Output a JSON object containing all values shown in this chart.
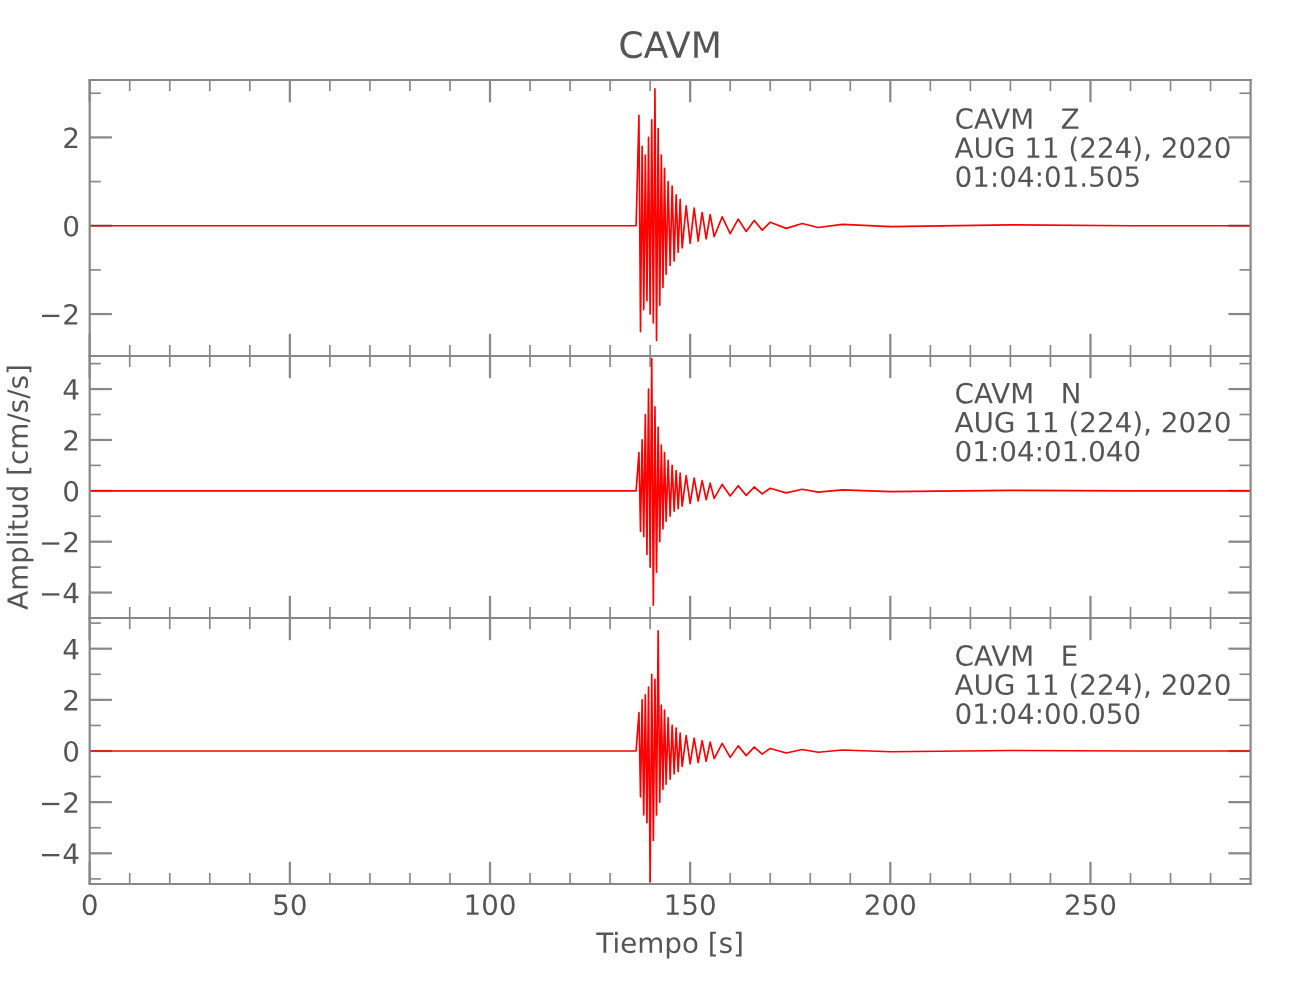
{
  "chart_data": [
    {
      "type": "line",
      "title": "CAVM",
      "tick_labels": "y",
      "annotations": [
        "CAVM   Z\nAUG 11 (224), 2020\n01:04:01.505"
      ],
      "xlim": [
        0,
        290
      ],
      "ylim": [
        -2.95,
        3.3
      ],
      "xticks": [
        0,
        {
          "value": 10,
          "label": null
        },
        {
          "value": 20,
          "label": null
        },
        {
          "value": 30,
          "label": null
        },
        {
          "value": 40,
          "label": null
        },
        50,
        {
          "value": 60,
          "label": null
        },
        {
          "value": 70,
          "label": null
        },
        {
          "value": 80,
          "label": null
        },
        {
          "value": 90,
          "label": null
        },
        100,
        {
          "value": 110,
          "label": null
        },
        {
          "value": 120,
          "label": null
        },
        {
          "value": 130,
          "label": null
        },
        {
          "value": 140,
          "label": null
        },
        150,
        {
          "value": 160,
          "label": null
        },
        {
          "value": 170,
          "label": null
        },
        {
          "value": 180,
          "label": null
        },
        {
          "value": 190,
          "label": null
        },
        200,
        {
          "value": 210,
          "label": null
        },
        {
          "value": 220,
          "label": null
        },
        {
          "value": 230,
          "label": null
        },
        {
          "value": 240,
          "label": null
        },
        250,
        {
          "value": 260,
          "label": null
        },
        {
          "value": 270,
          "label": null
        },
        {
          "value": 280,
          "label": null
        }
      ],
      "yticks": [
        {
          "value": -2,
          "label": "−2"
        },
        {
          "value": -1,
          "label": null
        },
        0,
        {
          "value": 1,
          "label": null
        },
        2,
        {
          "value": 3,
          "label": null
        }
      ],
      "x": [
        0,
        30,
        60,
        90,
        120,
        136.5,
        137.2,
        137.6,
        138.0,
        138.4,
        138.8,
        139.2,
        139.6,
        140.0,
        140.4,
        140.8,
        141.2,
        141.6,
        142.0,
        142.4,
        142.8,
        143.2,
        143.6,
        144.0,
        144.5,
        145.0,
        145.5,
        146,
        146.5,
        147,
        147.5,
        148,
        149,
        150,
        151,
        152,
        153,
        154,
        155,
        156,
        158,
        160,
        162,
        164,
        166,
        168,
        170,
        174,
        178,
        182,
        188,
        200,
        230,
        260,
        290
      ],
      "series": [
        {
          "color": "#ff0000",
          "values": [
            0,
            0,
            0,
            0,
            0,
            0,
            2.5,
            -2.4,
            1.8,
            -1.9,
            1.6,
            -1.7,
            2.0,
            -2.0,
            2.4,
            -2.2,
            3.1,
            -2.6,
            2.2,
            -1.8,
            1.6,
            -1.4,
            1.3,
            -1.1,
            1.0,
            -0.9,
            0.9,
            -0.8,
            0.7,
            -0.6,
            0.6,
            -0.5,
            0.45,
            -0.4,
            0.4,
            -0.35,
            0.3,
            -0.3,
            0.25,
            -0.25,
            0.2,
            -0.18,
            0.15,
            -0.13,
            0.12,
            -0.1,
            0.08,
            -0.06,
            0.05,
            -0.04,
            0.03,
            -0.02,
            0.02,
            0,
            0
          ]
        }
      ]
    },
    {
      "type": "line",
      "ylabel": "Amplitud [cm/s/s]",
      "tick_labels": "y",
      "annotations": [
        "CAVM   N\nAUG 11 (224), 2020\n01:04:01.040"
      ],
      "xlim": [
        0,
        290
      ],
      "ylim": [
        -5.0,
        5.3
      ],
      "xticks": [
        0,
        {
          "value": 10,
          "label": null
        },
        {
          "value": 20,
          "label": null
        },
        {
          "value": 30,
          "label": null
        },
        {
          "value": 40,
          "label": null
        },
        50,
        {
          "value": 60,
          "label": null
        },
        {
          "value": 70,
          "label": null
        },
        {
          "value": 80,
          "label": null
        },
        {
          "value": 90,
          "label": null
        },
        100,
        {
          "value": 110,
          "label": null
        },
        {
          "value": 120,
          "label": null
        },
        {
          "value": 130,
          "label": null
        },
        {
          "value": 140,
          "label": null
        },
        150,
        {
          "value": 160,
          "label": null
        },
        {
          "value": 170,
          "label": null
        },
        {
          "value": 180,
          "label": null
        },
        {
          "value": 190,
          "label": null
        },
        200,
        {
          "value": 210,
          "label": null
        },
        {
          "value": 220,
          "label": null
        },
        {
          "value": 230,
          "label": null
        },
        {
          "value": 240,
          "label": null
        },
        250,
        {
          "value": 260,
          "label": null
        },
        {
          "value": 270,
          "label": null
        },
        {
          "value": 280,
          "label": null
        }
      ],
      "yticks": [
        {
          "value": -4,
          "label": "−4"
        },
        {
          "value": -3,
          "label": null
        },
        {
          "value": -2,
          "label": "−2"
        },
        {
          "value": -1,
          "label": null
        },
        0,
        {
          "value": 1,
          "label": null
        },
        2,
        {
          "value": 3,
          "label": null
        },
        4,
        {
          "value": 5,
          "label": null
        }
      ],
      "x": [
        0,
        30,
        60,
        90,
        120,
        136.5,
        137.2,
        137.6,
        138.0,
        138.4,
        138.8,
        139.2,
        139.6,
        140.0,
        140.4,
        140.8,
        141.2,
        141.6,
        142.0,
        142.4,
        142.8,
        143.2,
        143.6,
        144.0,
        144.5,
        145.0,
        145.5,
        146,
        146.5,
        147,
        147.5,
        148,
        149,
        150,
        151,
        152,
        153,
        154,
        155,
        156,
        158,
        160,
        162,
        164,
        166,
        168,
        170,
        174,
        178,
        182,
        188,
        200,
        230,
        260,
        290
      ],
      "series": [
        {
          "color": "#ff0000",
          "values": [
            0,
            0,
            0,
            0,
            0,
            0,
            1.5,
            -1.6,
            2.0,
            -1.8,
            3.0,
            -2.5,
            4.0,
            -3.0,
            5.2,
            -4.5,
            3.3,
            -3.2,
            2.5,
            -2.0,
            1.8,
            -1.5,
            1.5,
            -1.2,
            1.2,
            -1.0,
            1.0,
            -0.8,
            0.8,
            -0.7,
            0.7,
            -0.6,
            0.6,
            -0.5,
            0.5,
            -0.4,
            0.4,
            -0.35,
            0.3,
            -0.3,
            0.25,
            -0.2,
            0.2,
            -0.18,
            0.15,
            -0.12,
            0.1,
            -0.08,
            0.06,
            -0.05,
            0.04,
            -0.03,
            0.02,
            0,
            0
          ]
        }
      ]
    },
    {
      "type": "line",
      "xlabel": "Tiempo [s]",
      "annotations": [
        "CAVM   E\nAUG 11 (224), 2020\n01:04:00.050"
      ],
      "xlim": [
        0,
        290
      ],
      "ylim": [
        -5.2,
        5.2
      ],
      "xticks": [
        0,
        {
          "value": 10,
          "label": null
        },
        {
          "value": 20,
          "label": null
        },
        {
          "value": 30,
          "label": null
        },
        {
          "value": 40,
          "label": null
        },
        50,
        {
          "value": 60,
          "label": null
        },
        {
          "value": 70,
          "label": null
        },
        {
          "value": 80,
          "label": null
        },
        {
          "value": 90,
          "label": null
        },
        100,
        {
          "value": 110,
          "label": null
        },
        {
          "value": 120,
          "label": null
        },
        {
          "value": 130,
          "label": null
        },
        {
          "value": 140,
          "label": null
        },
        150,
        {
          "value": 160,
          "label": null
        },
        {
          "value": 170,
          "label": null
        },
        {
          "value": 180,
          "label": null
        },
        {
          "value": 190,
          "label": null
        },
        200,
        {
          "value": 210,
          "label": null
        },
        {
          "value": 220,
          "label": null
        },
        {
          "value": 230,
          "label": null
        },
        {
          "value": 240,
          "label": null
        },
        250,
        {
          "value": 260,
          "label": null
        },
        {
          "value": 270,
          "label": null
        },
        {
          "value": 280,
          "label": null
        }
      ],
      "yticks": [
        {
          "value": -5,
          "label": null
        },
        {
          "value": -4,
          "label": "−4"
        },
        {
          "value": -3,
          "label": null
        },
        {
          "value": -2,
          "label": "−2"
        },
        {
          "value": -1,
          "label": null
        },
        0,
        {
          "value": 1,
          "label": null
        },
        2,
        {
          "value": 3,
          "label": null
        },
        4,
        {
          "value": 5,
          "label": null
        }
      ],
      "x": [
        0,
        30,
        60,
        90,
        120,
        136.5,
        137.2,
        137.6,
        138.0,
        138.4,
        138.8,
        139.2,
        139.6,
        140.0,
        140.4,
        140.8,
        141.2,
        141.6,
        142.0,
        142.4,
        142.8,
        143.2,
        143.6,
        144.0,
        144.5,
        145.0,
        145.5,
        146,
        146.5,
        147,
        147.5,
        148,
        149,
        150,
        151,
        152,
        153,
        154,
        155,
        156,
        158,
        160,
        162,
        164,
        166,
        168,
        170,
        174,
        178,
        182,
        188,
        200,
        230,
        260,
        290
      ],
      "series": [
        {
          "color": "#ff0000",
          "values": [
            0,
            0,
            0,
            0,
            0,
            0,
            1.5,
            -1.8,
            2.0,
            -2.5,
            2.2,
            -2.8,
            2.5,
            -5.1,
            3.0,
            -3.5,
            2.8,
            -2.5,
            4.7,
            -2.0,
            1.8,
            -1.5,
            1.6,
            -1.3,
            1.3,
            -1.1,
            1.0,
            -0.9,
            0.9,
            -0.8,
            0.7,
            -0.6,
            0.6,
            -0.5,
            0.5,
            -0.45,
            0.4,
            -0.4,
            0.35,
            -0.3,
            0.3,
            -0.25,
            0.2,
            -0.18,
            0.15,
            -0.12,
            0.1,
            -0.08,
            0.06,
            -0.05,
            0.04,
            -0.03,
            0.02,
            0,
            0
          ]
        }
      ]
    }
  ]
}
